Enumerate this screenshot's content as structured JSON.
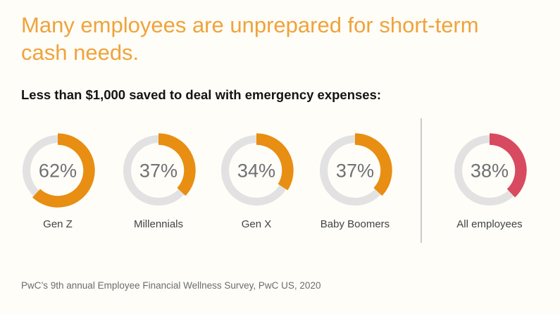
{
  "title": "Many employees are unprepared for short-term cash needs.",
  "subtitle": "Less than $1,000 saved to deal with emergency expenses:",
  "source": "PwC’s 9th annual Employee Financial Wellness Survey, PwC US, 2020",
  "colors": {
    "title_orange": "#EFA33C",
    "arc_orange": "#E88E12",
    "arc_rose": "#D84A5F",
    "track_gray": "#E2E2E3",
    "value_gray": "#6E7074",
    "label_gray": "#3F4347",
    "divider_gray": "#C9CACB",
    "background": "#FFFDF7"
  },
  "chart_data": {
    "type": "donut",
    "title": "Less than $1,000 saved to deal with emergency expenses:",
    "unit": "%",
    "value_range": [
      0,
      100
    ],
    "arc_start": "top",
    "arc_direction": "clockwise",
    "items": [
      {
        "label": "Gen Z",
        "value": 62,
        "value_label": "62%",
        "color": "#E88E12",
        "group": "generation"
      },
      {
        "label": "Millennials",
        "value": 37,
        "value_label": "37%",
        "color": "#E88E12",
        "group": "generation"
      },
      {
        "label": "Gen X",
        "value": 34,
        "value_label": "34%",
        "color": "#E88E12",
        "group": "generation"
      },
      {
        "label": "Baby Boomers",
        "value": 37,
        "value_label": "37%",
        "color": "#E88E12",
        "group": "generation"
      },
      {
        "label": "All employees",
        "value": 38,
        "value_label": "38%",
        "color": "#D84A5F",
        "group": "overall"
      }
    ]
  }
}
